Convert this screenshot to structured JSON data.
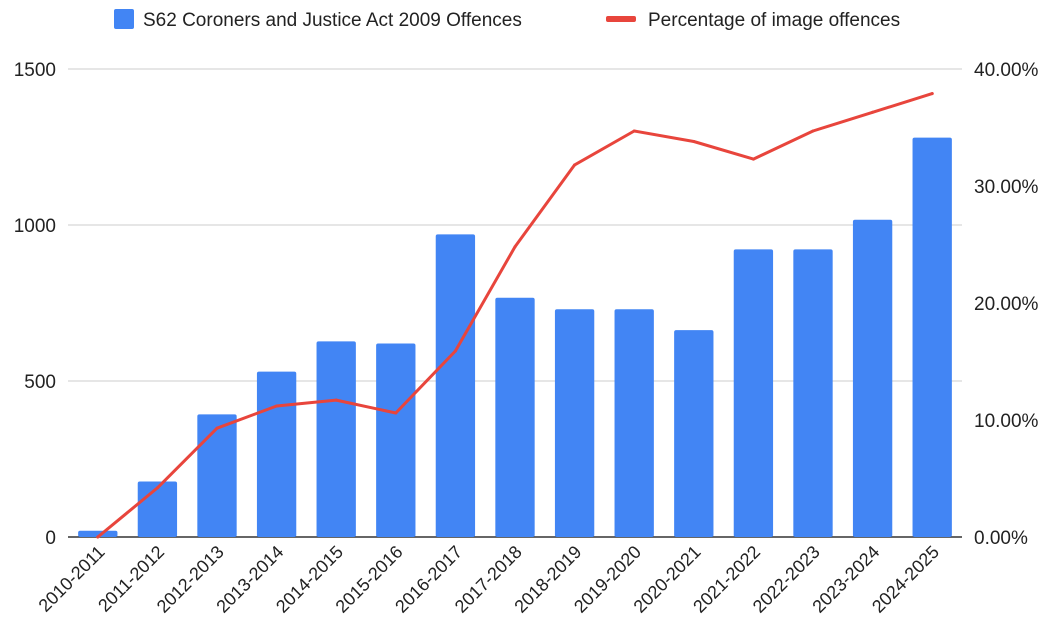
{
  "chart_data": {
    "type": "bar",
    "categories": [
      "2010-2011",
      "2011-2012",
      "2012-2013",
      "2013-2014",
      "2014-2015",
      "2015-2016",
      "2016-2017",
      "2017-2018",
      "2018-2019",
      "2019-2020",
      "2020-2021",
      "2021-2022",
      "2022-2023",
      "2023-2024",
      "2024-2025"
    ],
    "series": [
      {
        "name": "S62 Coroners and Justice Act 2009 Offences",
        "type": "bar",
        "axis": "left",
        "color": "#4285f4",
        "values": [
          20,
          178,
          393,
          530,
          627,
          620,
          970,
          767,
          730,
          730,
          663,
          922,
          922,
          1017,
          1280
        ]
      },
      {
        "name": "Percentage of image offences",
        "type": "line",
        "axis": "right",
        "color": "#e8453c",
        "values": [
          0.0,
          4.2,
          9.3,
          11.2,
          11.7,
          10.6,
          15.9,
          24.8,
          31.8,
          34.7,
          33.8,
          32.3,
          34.7,
          36.3,
          37.9
        ]
      }
    ],
    "y_left": {
      "ylim": [
        0,
        1500
      ],
      "ticks": [
        "0",
        "500",
        "1000",
        "1500"
      ]
    },
    "y_right": {
      "ylim": [
        0,
        40
      ],
      "ticks": [
        "0.00%",
        "10.00%",
        "20.00%",
        "30.00%",
        "40.00%"
      ]
    },
    "grid": true,
    "legend_position": "top"
  }
}
